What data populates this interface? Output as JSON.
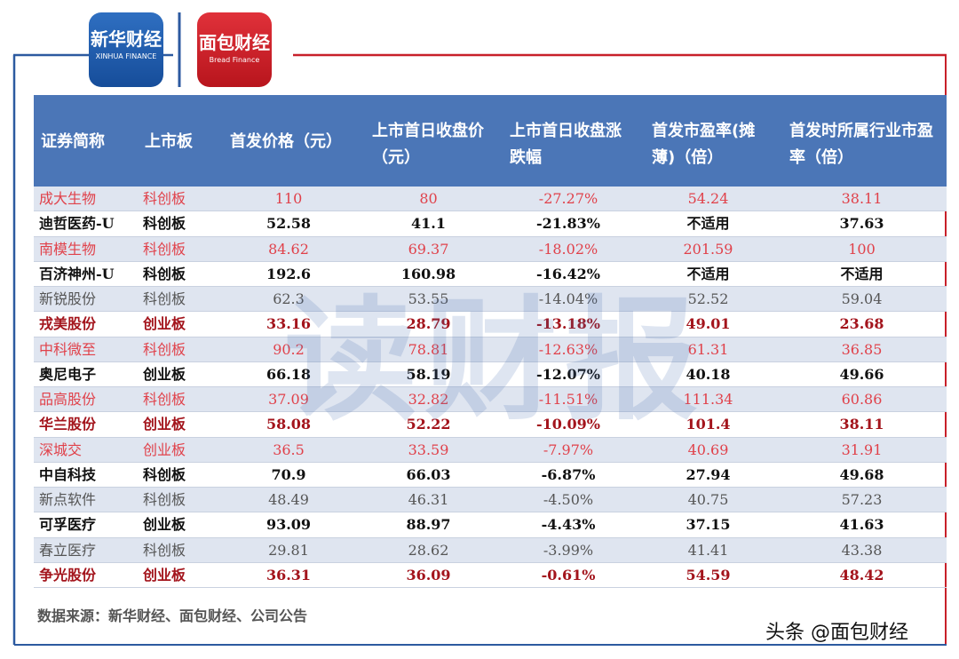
{
  "logos": {
    "left": {
      "cn": "新华财经",
      "en": "XINHUA FINANCE"
    },
    "right": {
      "cn": "面包财经",
      "en": "Bread Finance"
    }
  },
  "watermark": "读财报",
  "table": {
    "headers": [
      "证券简称",
      "上市板",
      "首发价格（元）",
      "上市首日收盘价（元）",
      "上市首日收盘涨跌幅",
      "首发市盈率(摊薄)（倍）",
      "首发时所属行业市盈率（倍）"
    ],
    "rows": [
      {
        "cells": [
          "成大生物",
          "科创板",
          "110",
          "80",
          "-27.27%",
          "54.24",
          "38.11"
        ],
        "color": "#e0414a",
        "bold": false
      },
      {
        "cells": [
          "迪哲医药-U",
          "科创板",
          "52.58",
          "41.1",
          "-21.83%",
          "不适用",
          "37.63"
        ],
        "color": "#111111",
        "bold": true
      },
      {
        "cells": [
          "南模生物",
          "科创板",
          "84.62",
          "69.37",
          "-18.02%",
          "201.59",
          "100"
        ],
        "color": "#e0414a",
        "bold": false
      },
      {
        "cells": [
          "百济神州-U",
          "科创板",
          "192.6",
          "160.98",
          "-16.42%",
          "不适用",
          "不适用"
        ],
        "color": "#111111",
        "bold": true
      },
      {
        "cells": [
          "新锐股份",
          "科创板",
          "62.3",
          "53.55",
          "-14.04%",
          "52.52",
          "59.04"
        ],
        "color": "#555555",
        "bold": false
      },
      {
        "cells": [
          "戎美股份",
          "创业板",
          "33.16",
          "28.79",
          "-13.18%",
          "49.01",
          "23.68"
        ],
        "color": "#a3141c",
        "bold": true
      },
      {
        "cells": [
          "中科微至",
          "科创板",
          "90.2",
          "78.81",
          "-12.63%",
          "61.31",
          "36.85"
        ],
        "color": "#e0414a",
        "bold": false
      },
      {
        "cells": [
          "奥尼电子",
          "创业板",
          "66.18",
          "58.19",
          "-12.07%",
          "40.18",
          "49.66"
        ],
        "color": "#111111",
        "bold": true
      },
      {
        "cells": [
          "品高股份",
          "科创板",
          "37.09",
          "32.82",
          "-11.51%",
          "111.34",
          "60.86"
        ],
        "color": "#e0414a",
        "bold": false
      },
      {
        "cells": [
          "华兰股份",
          "创业板",
          "58.08",
          "52.22",
          "-10.09%",
          "101.4",
          "38.11"
        ],
        "color": "#a3141c",
        "bold": true
      },
      {
        "cells": [
          "深城交",
          "创业板",
          "36.5",
          "33.59",
          "-7.97%",
          "40.69",
          "31.91"
        ],
        "color": "#e0414a",
        "bold": false
      },
      {
        "cells": [
          "中自科技",
          "科创板",
          "70.9",
          "66.03",
          "-6.87%",
          "27.94",
          "49.68"
        ],
        "color": "#111111",
        "bold": true
      },
      {
        "cells": [
          "新点软件",
          "科创板",
          "48.49",
          "46.31",
          "-4.50%",
          "40.75",
          "57.23"
        ],
        "color": "#555555",
        "bold": false
      },
      {
        "cells": [
          "可孚医疗",
          "创业板",
          "93.09",
          "88.97",
          "-4.43%",
          "37.15",
          "41.63"
        ],
        "color": "#111111",
        "bold": true
      },
      {
        "cells": [
          "春立医疗",
          "科创板",
          "29.81",
          "28.62",
          "-3.99%",
          "41.41",
          "43.38"
        ],
        "color": "#555555",
        "bold": false
      },
      {
        "cells": [
          "争光股份",
          "创业板",
          "36.31",
          "36.09",
          "-0.61%",
          "54.59",
          "48.42"
        ],
        "color": "#a3141c",
        "bold": true
      }
    ]
  },
  "source": "数据来源：新华财经、面包财经、公司公告",
  "credit": "头条 @面包财经"
}
